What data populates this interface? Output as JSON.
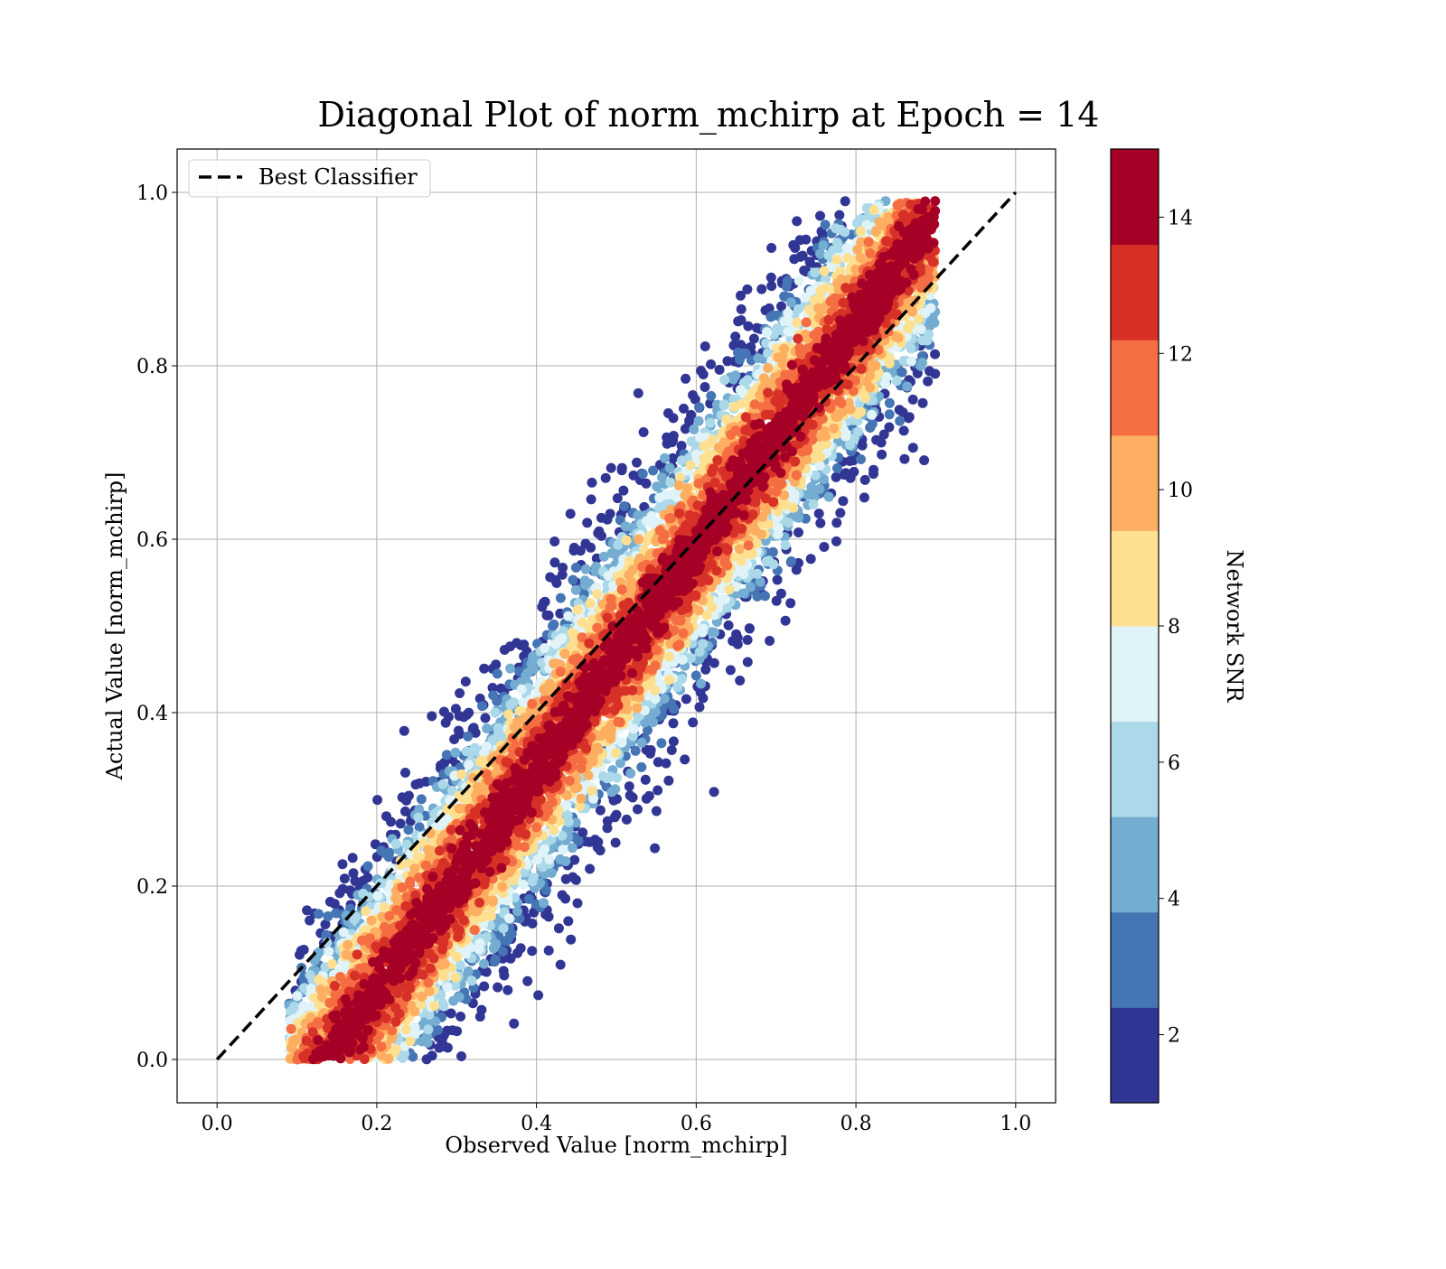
{
  "chart_data": {
    "type": "scatter",
    "title": "Diagonal Plot of norm_mchirp at Epoch = 14",
    "xlabel": "Observed Value [norm_mchirp]",
    "ylabel": "Actual Value [norm_mchirp]",
    "xlim": [
      -0.05,
      1.05
    ],
    "ylim": [
      -0.05,
      1.05
    ],
    "xticks": [
      "0.0",
      "0.2",
      "0.4",
      "0.6",
      "0.8",
      "1.0"
    ],
    "yticks": [
      "0.0",
      "0.2",
      "0.4",
      "0.6",
      "0.8",
      "1.0"
    ],
    "grid": true,
    "legend": {
      "placement": "upper-left",
      "entries": [
        "Best Classifier"
      ]
    },
    "best_classifier_line": {
      "x": [
        0.0,
        1.0
      ],
      "y": [
        0.0,
        1.0
      ],
      "style": "dashed",
      "color": "#000000"
    },
    "scatter_description": {
      "x_range": [
        0.09,
        0.9
      ],
      "y_range": [
        0.0,
        0.99
      ],
      "color_variable": "Network SNR",
      "high_snr_band_half_width": 0.12
    },
    "colorbar": {
      "label": "Network SNR",
      "range": [
        1,
        15
      ],
      "ticks": [
        "2",
        "4",
        "6",
        "8",
        "10",
        "12",
        "14"
      ],
      "tick_values": [
        2,
        4,
        6,
        8,
        10,
        12,
        14
      ],
      "colors": [
        "#313695",
        "#4575b4",
        "#74add1",
        "#abd9e9",
        "#e0f3f8",
        "#fee090",
        "#fdae61",
        "#f46d43",
        "#d73027",
        "#a50026"
      ]
    }
  }
}
